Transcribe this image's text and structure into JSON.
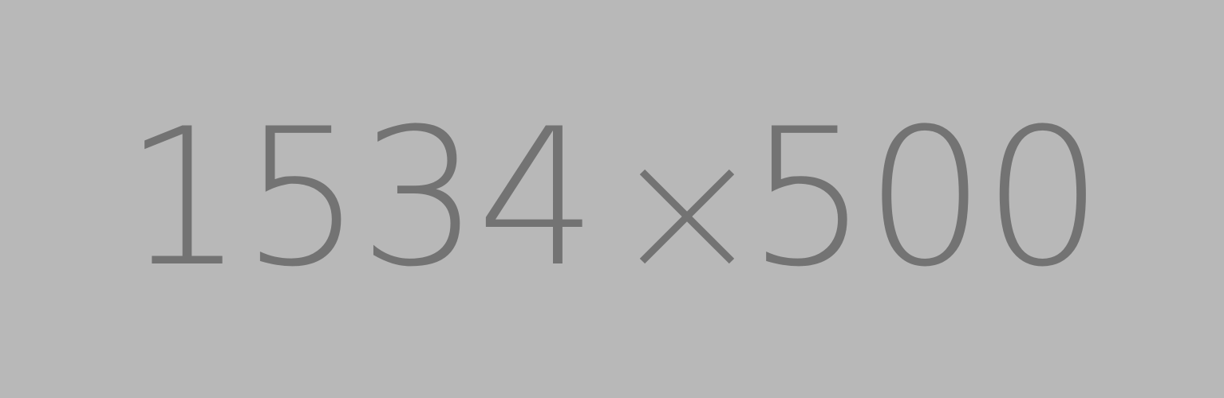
{
  "placeholder": {
    "width_text": "1534",
    "separator": "×",
    "height_text": "500",
    "background_color": "#b8b8b8",
    "text_color": "#737373"
  }
}
